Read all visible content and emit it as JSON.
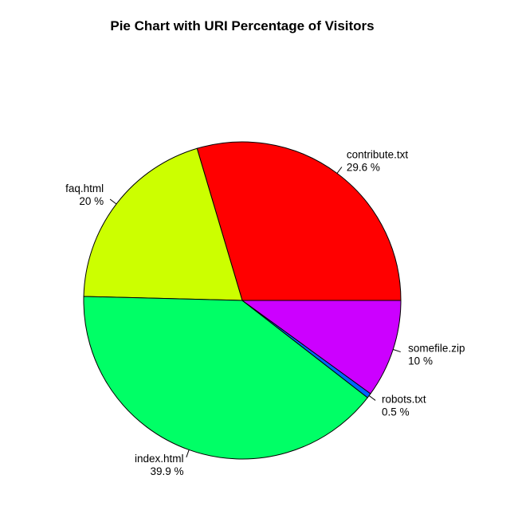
{
  "chart_data": {
    "type": "pie",
    "title": "Pie Chart with URI Percentage of Visitors",
    "start_angle_deg": 0,
    "direction": "counterclockwise",
    "slices": [
      {
        "name": "contribute.txt",
        "value": 29.6,
        "label": "29.6 %",
        "color": "#FF0000"
      },
      {
        "name": "faq.html",
        "value": 20,
        "label": "20 %",
        "color": "#CCFF00"
      },
      {
        "name": "index.html",
        "value": 39.9,
        "label": "39.9 %",
        "color": "#00FF66"
      },
      {
        "name": "robots.txt",
        "value": 0.5,
        "label": "0.5 %",
        "color": "#0066FF"
      },
      {
        "name": "somefile.zip",
        "value": 10,
        "label": "10 %",
        "color": "#CC00FF"
      }
    ]
  }
}
